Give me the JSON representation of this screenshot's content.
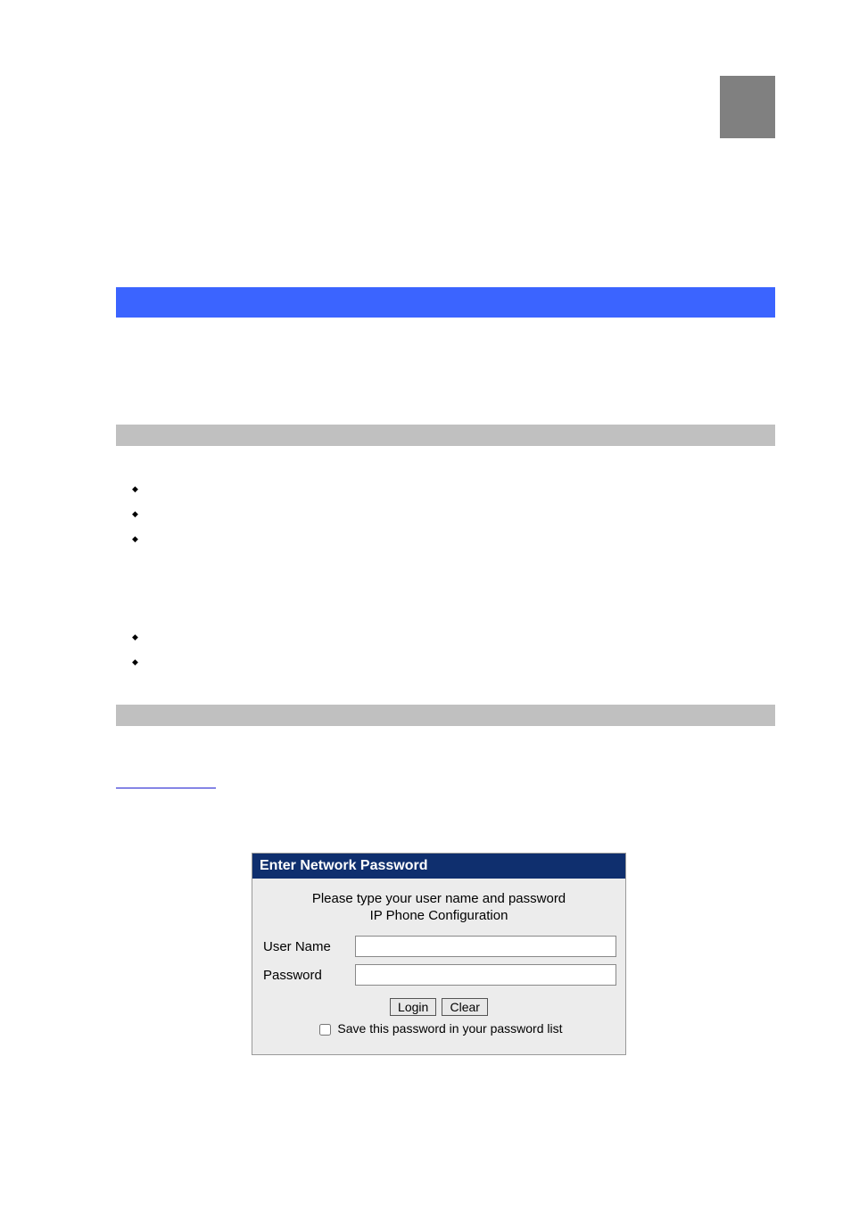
{
  "colors": {
    "blue_bar": "#3b64ff",
    "gray_bar": "#c0c0c0",
    "gray_block": "#808080",
    "login_header_bg": "#0f2f6e",
    "login_header_text": "#ffffff",
    "login_body_bg": "#ececec",
    "link_underline": "#2020d0"
  },
  "login": {
    "title": "Enter Network Password",
    "message": "Please type your user name and password",
    "subtitle": "IP Phone Configuration",
    "username_label": "User Name",
    "password_label": "Password",
    "login_btn": "Login",
    "clear_btn": "Clear",
    "save_label": "Save this password in your password list"
  }
}
